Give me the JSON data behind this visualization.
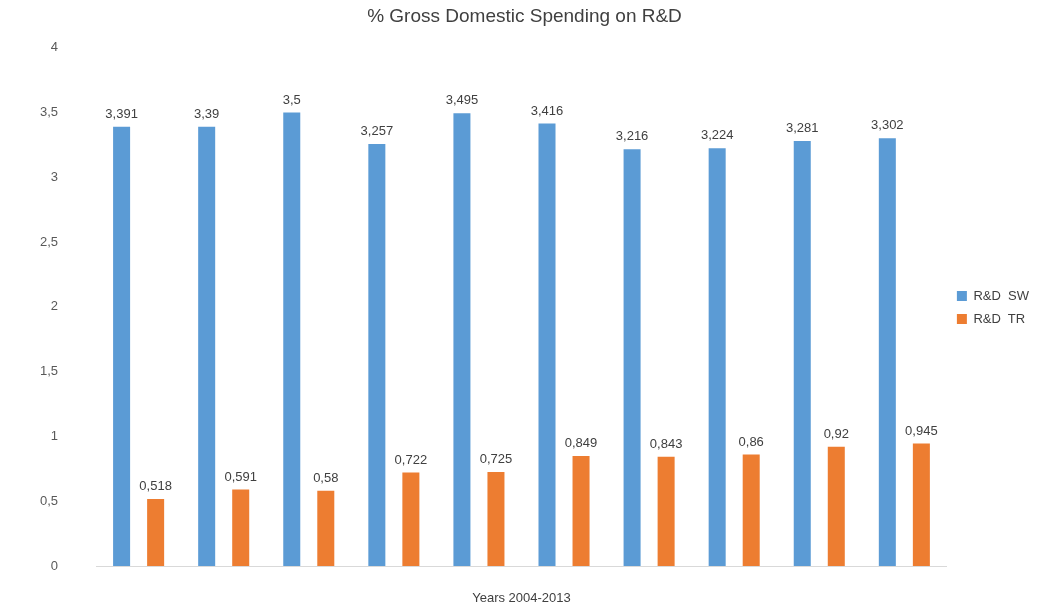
{
  "chart_data": {
    "type": "bar",
    "title": "% Gross Domestic Spending on R&D",
    "xlabel": "Years 2004-2013",
    "categories": [
      null,
      null,
      null,
      null,
      null,
      null,
      null,
      null,
      null,
      null
    ],
    "series": [
      {
        "name": "R&D  SW",
        "color": "#5b9bd5",
        "values": [
          3.391,
          3.39,
          3.5,
          3.257,
          3.495,
          3.416,
          3.216,
          3.224,
          3.281,
          3.302
        ],
        "value_labels": [
          "3,391",
          "3,39",
          "3,5",
          "3,257",
          "3,495",
          "3,416",
          "3,216",
          "3,224",
          "3,281",
          "3,302"
        ]
      },
      {
        "name": "R&D  TR",
        "color": "#ed7d31",
        "values": [
          0.518,
          0.591,
          0.58,
          0.722,
          0.725,
          0.849,
          0.843,
          0.86,
          0.92,
          0.945
        ],
        "value_labels": [
          "0,518",
          "0,591",
          "0,58",
          "0,722",
          "0,725",
          "0,849",
          "0,843",
          "0,86",
          "0,92",
          "0,945"
        ]
      }
    ],
    "ylim": [
      0,
      4
    ],
    "yticks": [
      0,
      {
        "value": 0.5,
        "label": "0,5"
      },
      1,
      {
        "value": 1.5,
        "label": "1,5"
      },
      2,
      {
        "value": 2.5,
        "label": "2,5"
      },
      3,
      {
        "value": 3.5,
        "label": "3,5"
      },
      4
    ],
    "legend": "right",
    "grid": false
  }
}
